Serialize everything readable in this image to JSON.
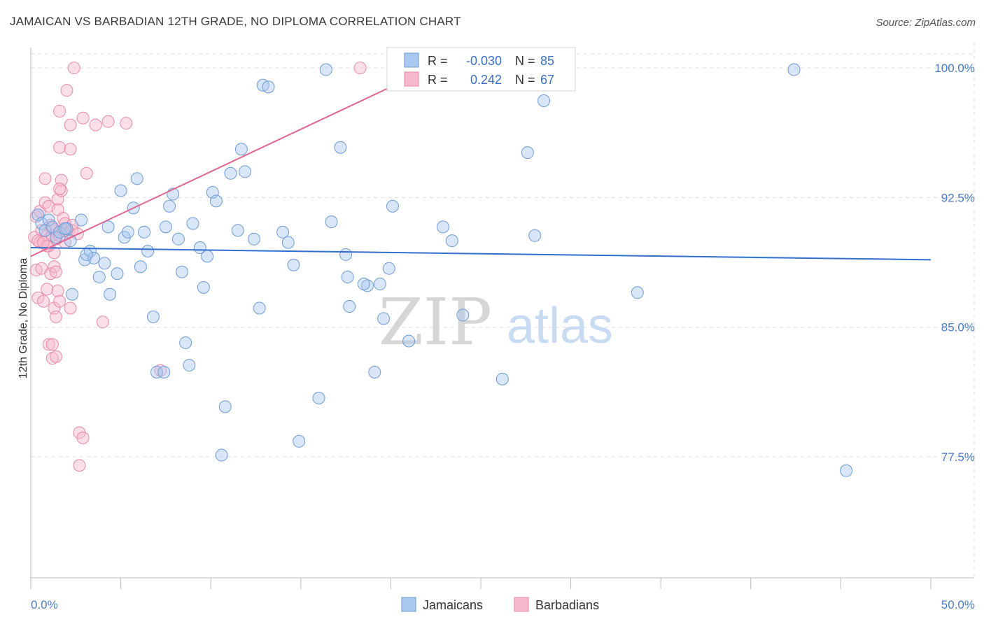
{
  "title": "JAMAICAN VS BARBADIAN 12TH GRADE, NO DIPLOMA CORRELATION CHART",
  "source": "Source: ZipAtlas.com",
  "watermark": {
    "zip": "ZIP",
    "atlas": "atlas"
  },
  "colors": {
    "jamaican_fill": "#a9c8ee",
    "jamaican_stroke": "#6e9bd6",
    "jamaican_line": "#2f6fcf",
    "barbadian_fill": "#f6b8cb",
    "barbadian_stroke": "#e88aa8",
    "barbadian_line": "#e0668f",
    "tick_label": "#4a7cc9",
    "grid": "#dddddd"
  },
  "legend": {
    "r_label": "R =",
    "n_label": "N =",
    "rows": [
      {
        "r": "-0.030",
        "n": "85"
      },
      {
        "r": "0.242",
        "n": "67"
      }
    ]
  },
  "chart_data": {
    "type": "scatter",
    "title": "JAMAICAN VS BARBADIAN 12TH GRADE, NO DIPLOMA CORRELATION CHART",
    "xlabel": "",
    "ylabel": "12th Grade, No Diploma",
    "xlim": [
      0,
      50
    ],
    "ylim": [
      70.5,
      101.5
    ],
    "x_tick_labels": [
      "0.0%",
      "50.0%"
    ],
    "y_ticks": [
      77.5,
      85.0,
      92.5,
      100.0
    ],
    "y_tick_labels": [
      "77.5%",
      "85.0%",
      "92.5%",
      "100.0%"
    ],
    "grid": true,
    "legend_position": "bottom-center",
    "series": [
      {
        "name": "Jamaicans",
        "trend": {
          "x": [
            0,
            50
          ],
          "y": [
            89.6,
            88.9
          ]
        },
        "points": [
          [
            0.4,
            91.5
          ],
          [
            0.6,
            91.0
          ],
          [
            0.8,
            90.6
          ],
          [
            1.0,
            91.2
          ],
          [
            1.2,
            90.8
          ],
          [
            1.4,
            90.2
          ],
          [
            1.6,
            90.5
          ],
          [
            2.0,
            90.7
          ],
          [
            2.2,
            90.0
          ],
          [
            2.3,
            86.9
          ],
          [
            2.8,
            91.2
          ],
          [
            3.0,
            88.9
          ],
          [
            3.3,
            89.4
          ],
          [
            3.5,
            89.0
          ],
          [
            3.8,
            87.9
          ],
          [
            4.1,
            88.7
          ],
          [
            4.3,
            90.8
          ],
          [
            4.4,
            86.9
          ],
          [
            4.8,
            88.1
          ],
          [
            5.0,
            92.9
          ],
          [
            5.2,
            90.2
          ],
          [
            5.4,
            90.5
          ],
          [
            5.7,
            91.9
          ],
          [
            5.9,
            93.6
          ],
          [
            6.1,
            88.5
          ],
          [
            6.3,
            90.5
          ],
          [
            6.5,
            89.4
          ],
          [
            6.8,
            85.6
          ],
          [
            7.0,
            82.4
          ],
          [
            7.4,
            82.4
          ],
          [
            7.5,
            90.8
          ],
          [
            7.7,
            92.0
          ],
          [
            7.9,
            92.7
          ],
          [
            8.2,
            90.1
          ],
          [
            8.4,
            88.2
          ],
          [
            8.6,
            84.1
          ],
          [
            8.8,
            82.8
          ],
          [
            9.0,
            91.0
          ],
          [
            9.4,
            89.6
          ],
          [
            9.6,
            87.3
          ],
          [
            9.8,
            89.1
          ],
          [
            10.1,
            92.8
          ],
          [
            10.3,
            92.3
          ],
          [
            10.6,
            77.6
          ],
          [
            10.8,
            80.4
          ],
          [
            11.1,
            93.9
          ],
          [
            11.5,
            90.6
          ],
          [
            11.7,
            95.3
          ],
          [
            11.9,
            94.0
          ],
          [
            12.4,
            90.1
          ],
          [
            12.7,
            86.1
          ],
          [
            12.9,
            99.0
          ],
          [
            13.2,
            98.9
          ],
          [
            14.0,
            90.5
          ],
          [
            14.3,
            89.9
          ],
          [
            14.6,
            88.6
          ],
          [
            14.9,
            78.4
          ],
          [
            16.0,
            80.9
          ],
          [
            16.4,
            99.9
          ],
          [
            16.7,
            91.1
          ],
          [
            17.2,
            95.4
          ],
          [
            17.5,
            89.2
          ],
          [
            17.6,
            87.9
          ],
          [
            17.7,
            86.2
          ],
          [
            18.7,
            87.4
          ],
          [
            19.1,
            82.4
          ],
          [
            19.4,
            87.5
          ],
          [
            19.6,
            85.5
          ],
          [
            19.9,
            88.4
          ],
          [
            20.1,
            92.0
          ],
          [
            21.0,
            84.2
          ],
          [
            22.9,
            90.8
          ],
          [
            23.4,
            90.0
          ],
          [
            24.0,
            85.7
          ],
          [
            26.2,
            82.0
          ],
          [
            26.5,
            100.0
          ],
          [
            27.6,
            95.1
          ],
          [
            28.0,
            90.3
          ],
          [
            28.5,
            98.1
          ],
          [
            33.7,
            87.0
          ],
          [
            42.4,
            99.9
          ],
          [
            45.3,
            76.7
          ],
          [
            18.5,
            87.5
          ],
          [
            3.1,
            89.2
          ],
          [
            1.9,
            90.7
          ]
        ]
      },
      {
        "name": "Barbadians",
        "trend": {
          "x": [
            0,
            20.0
          ],
          "y": [
            89.1,
            98.9
          ]
        },
        "points": [
          [
            0.2,
            90.2
          ],
          [
            0.3,
            91.4
          ],
          [
            0.3,
            88.3
          ],
          [
            0.4,
            86.7
          ],
          [
            0.5,
            89.9
          ],
          [
            0.5,
            91.7
          ],
          [
            0.6,
            90.6
          ],
          [
            0.6,
            88.4
          ],
          [
            0.7,
            89.9
          ],
          [
            0.7,
            86.5
          ],
          [
            0.8,
            93.6
          ],
          [
            0.8,
            92.2
          ],
          [
            0.9,
            90.3
          ],
          [
            0.9,
            87.2
          ],
          [
            1.0,
            89.7
          ],
          [
            1.0,
            84.0
          ],
          [
            1.0,
            92.0
          ],
          [
            1.1,
            90.9
          ],
          [
            1.1,
            88.1
          ],
          [
            1.2,
            90.3
          ],
          [
            1.2,
            84.0
          ],
          [
            1.2,
            83.2
          ],
          [
            1.3,
            89.3
          ],
          [
            1.3,
            88.5
          ],
          [
            1.3,
            86.1
          ],
          [
            1.4,
            90.1
          ],
          [
            1.4,
            88.2
          ],
          [
            1.4,
            85.6
          ],
          [
            1.4,
            83.3
          ],
          [
            1.5,
            92.4
          ],
          [
            1.5,
            91.8
          ],
          [
            1.5,
            87.1
          ],
          [
            1.6,
            90.3
          ],
          [
            1.6,
            86.5
          ],
          [
            1.6,
            95.4
          ],
          [
            1.6,
            97.5
          ],
          [
            1.7,
            92.9
          ],
          [
            1.7,
            93.5
          ],
          [
            1.8,
            91.3
          ],
          [
            1.8,
            90.6
          ],
          [
            1.9,
            91.0
          ],
          [
            2.0,
            98.7
          ],
          [
            2.1,
            90.5
          ],
          [
            2.2,
            96.7
          ],
          [
            2.2,
            95.3
          ],
          [
            2.2,
            86.1
          ],
          [
            2.3,
            90.9
          ],
          [
            2.3,
            90.6
          ],
          [
            2.4,
            100.0
          ],
          [
            2.6,
            90.4
          ],
          [
            2.7,
            78.9
          ],
          [
            2.7,
            77.0
          ],
          [
            2.9,
            97.1
          ],
          [
            2.9,
            78.6
          ],
          [
            3.1,
            93.9
          ],
          [
            3.6,
            96.7
          ],
          [
            4.0,
            85.3
          ],
          [
            4.3,
            96.9
          ],
          [
            5.3,
            96.8
          ],
          [
            7.2,
            82.5
          ],
          [
            18.3,
            100.0
          ],
          [
            0.4,
            90.0
          ],
          [
            0.9,
            89.7
          ],
          [
            1.6,
            93.0
          ],
          [
            1.9,
            89.9
          ],
          [
            0.7,
            89.9
          ],
          [
            1.2,
            90.7
          ]
        ]
      }
    ]
  },
  "bottom_legend": {
    "jamaicans": "Jamaicans",
    "barbadians": "Barbadians"
  }
}
